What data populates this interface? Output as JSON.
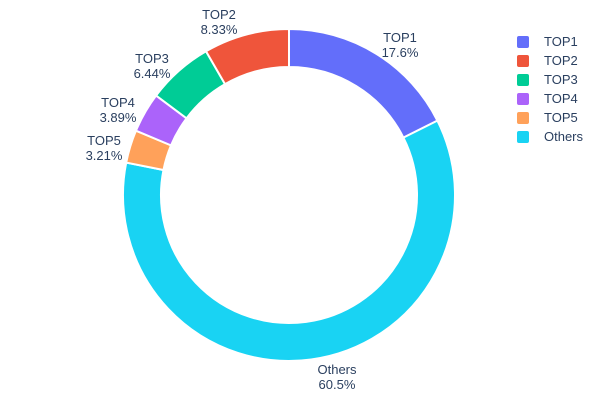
{
  "page": {
    "background_color": "#ffffff",
    "text_color": "#2a3f5f"
  },
  "chart_data": {
    "type": "pie",
    "subtype": "donut",
    "hole_ratio": 0.77,
    "title": "",
    "labels": [
      "TOP1",
      "TOP2",
      "TOP3",
      "TOP4",
      "TOP5",
      "Others"
    ],
    "values": [
      17.6,
      8.33,
      6.44,
      3.89,
      3.21,
      60.5
    ],
    "value_labels": [
      "17.6%",
      "8.33%",
      "6.44%",
      "3.89%",
      "3.21%",
      "60.5%"
    ],
    "colors": [
      "#636efa",
      "#ef553b",
      "#00cc96",
      "#ab63fa",
      "#ffa15a",
      "#19d3f3"
    ],
    "slice_order_clockwise": [
      0,
      5,
      4,
      3,
      2,
      1
    ],
    "start_angle_deg": 0,
    "label_position": "outside",
    "legend_position": "right",
    "legend_entries": [
      "TOP1",
      "TOP2",
      "TOP3",
      "TOP4",
      "TOP5",
      "Others"
    ]
  }
}
